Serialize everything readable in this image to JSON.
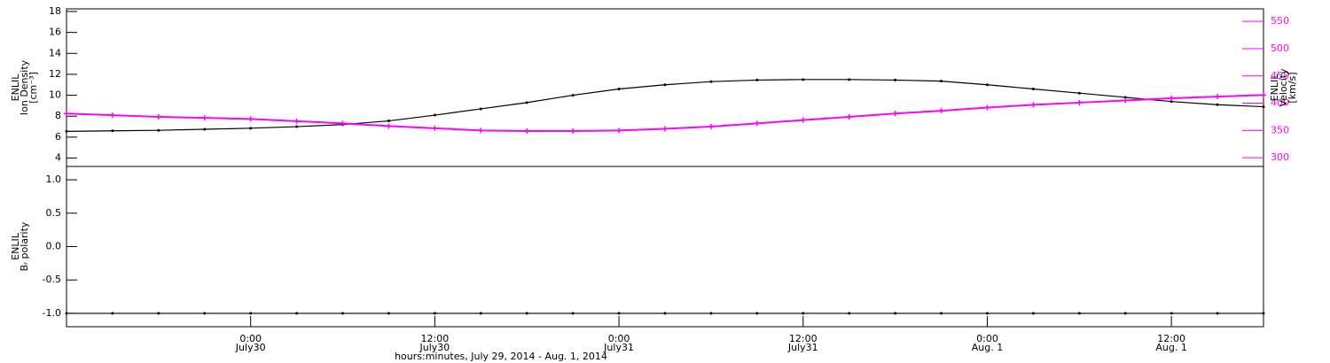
{
  "chart_data": [
    {
      "type": "line",
      "ylabel": [
        "ENLIL",
        "Ion Density",
        "[cm⁻³]"
      ],
      "y2label": [
        "ENLIL",
        "Velocity",
        "[km/s]"
      ],
      "x": [
        12,
        15,
        18,
        21,
        24,
        27,
        30,
        33,
        36,
        39,
        42,
        45,
        48,
        51,
        54,
        57,
        60,
        63,
        66,
        69,
        72,
        75,
        78,
        81,
        84,
        87,
        90
      ],
      "xlim": [
        12,
        90
      ],
      "ylim": [
        3.2,
        18.25
      ],
      "yticks": [
        4,
        6,
        8,
        10,
        12,
        14,
        16,
        18
      ],
      "y2lim": [
        284,
        573
      ],
      "y2ticks": [
        300,
        350,
        400,
        450,
        500,
        550
      ],
      "y2color": "#ff00ff",
      "series": [
        {
          "name": "Ion Density",
          "color": "#000000",
          "values": [
            6.55,
            6.6,
            6.65,
            6.75,
            6.85,
            7.0,
            7.2,
            7.55,
            8.1,
            8.7,
            9.3,
            10.0,
            10.6,
            11.0,
            11.3,
            11.45,
            11.5,
            11.5,
            11.45,
            11.35,
            11.0,
            10.6,
            10.2,
            9.8,
            9.4,
            9.1,
            8.9
          ]
        },
        {
          "name": "Velocity",
          "color": "#ff00ff",
          "axis": "y2",
          "values": [
            381,
            378,
            375,
            373,
            371,
            367,
            363,
            358,
            354,
            350,
            349,
            349,
            350,
            353,
            357,
            363,
            369,
            375,
            381,
            386,
            392,
            397,
            401,
            405,
            409,
            412,
            415
          ]
        }
      ]
    },
    {
      "type": "line",
      "ylabel": [
        "ENLIL",
        "Bᵣ polarity"
      ],
      "xlabel": "hours:minutes, July 29, 2014 - Aug.  1, 2014",
      "x": [
        12,
        15,
        18,
        21,
        24,
        27,
        30,
        33,
        36,
        39,
        42,
        45,
        48,
        51,
        54,
        57,
        60,
        63,
        66,
        69,
        72,
        75,
        78,
        81,
        84,
        87,
        90
      ],
      "xlim": [
        12,
        90
      ],
      "xticks": [
        {
          "value": 24,
          "label": "0:00"
        },
        {
          "value": 36,
          "label": "12:00"
        },
        {
          "value": 48,
          "label": "0:00"
        },
        {
          "value": 60,
          "label": "12:00"
        },
        {
          "value": 72,
          "label": "0:00"
        },
        {
          "value": 84,
          "label": "12:00"
        }
      ],
      "xtick_dates": [
        "July30",
        "July30",
        "July31",
        "July31",
        "Aug. 1",
        "Aug. 1"
      ],
      "ylim": [
        -1.2,
        1.2
      ],
      "yticks": [
        {
          "value": 1.0,
          "label": "1.0"
        },
        {
          "value": 0.5,
          "label": "0.5"
        },
        {
          "value": 0.0,
          "label": "0.0"
        },
        {
          "value": -0.5,
          "label": "-0.5"
        },
        {
          "value": -1.0,
          "label": "-1.0"
        }
      ],
      "series": [
        {
          "name": "Br polarity",
          "color": "#000000",
          "values": [
            -1,
            -1,
            -1,
            -1,
            -1,
            -1,
            -1,
            -1,
            -1,
            -1,
            -1,
            -1,
            -1,
            -1,
            -1,
            -1,
            -1,
            -1,
            -1,
            -1,
            -1,
            -1,
            -1,
            -1,
            -1,
            -1,
            -1
          ]
        }
      ]
    }
  ]
}
